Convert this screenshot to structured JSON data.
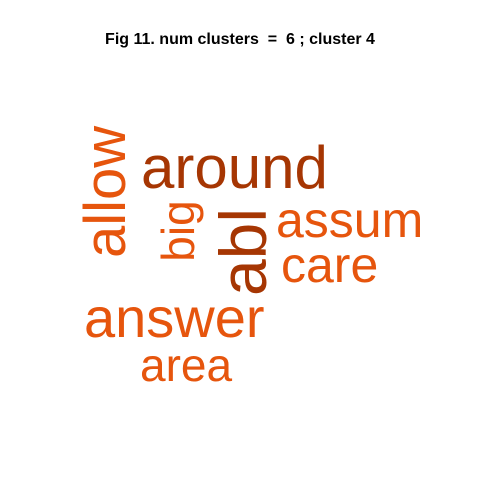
{
  "figure": {
    "title": "Fig 11. num clusters  =  6 ; cluster 4"
  },
  "words": [
    {
      "text": "around",
      "color": "#a63603",
      "orientation": "horizontal"
    },
    {
      "text": "allow",
      "color": "#e6550d",
      "orientation": "vertical"
    },
    {
      "text": "big",
      "color": "#e6550d",
      "orientation": "vertical"
    },
    {
      "text": "abl",
      "color": "#a63603",
      "orientation": "vertical"
    },
    {
      "text": "assum",
      "color": "#e6550d",
      "orientation": "horizontal"
    },
    {
      "text": "care",
      "color": "#e6550d",
      "orientation": "horizontal"
    },
    {
      "text": "answer",
      "color": "#e6550d",
      "orientation": "horizontal"
    },
    {
      "text": "area",
      "color": "#e6550d",
      "orientation": "horizontal"
    }
  ]
}
